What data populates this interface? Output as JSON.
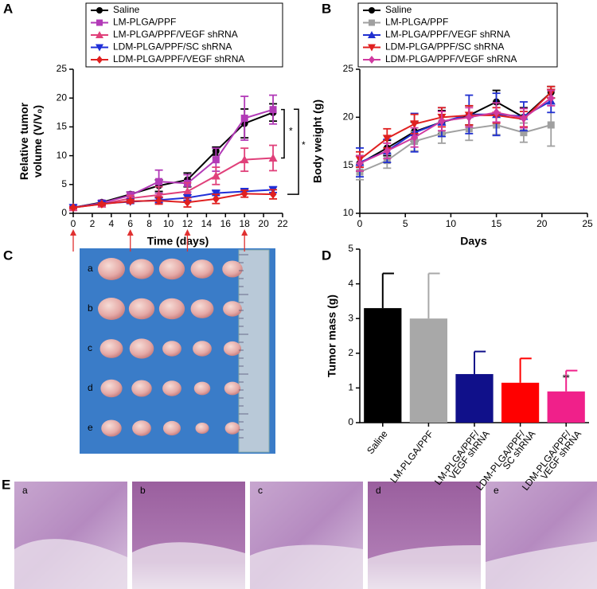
{
  "panels": [
    "A",
    "B",
    "C",
    "D",
    "E"
  ],
  "chart_data": [
    {
      "type": "line",
      "xlabel": "Time (days)",
      "ylabel": [
        "Relative tumor",
        "volume (V/V₀)"
      ],
      "x": [
        0,
        3,
        6,
        9,
        12,
        15,
        18,
        21
      ],
      "xlim": [
        0,
        22
      ],
      "xticks": [
        0,
        2,
        4,
        6,
        8,
        10,
        12,
        14,
        16,
        18,
        20,
        22
      ],
      "ylim": [
        0,
        25
      ],
      "yticks": [
        0,
        5,
        10,
        15,
        20,
        25
      ],
      "arrow_days": [
        0,
        6,
        12,
        18
      ],
      "arrow_color": "#e03030",
      "annotations": [
        "*",
        "*"
      ],
      "series": [
        {
          "name": "Saline",
          "color": "#000000",
          "marker": "circle",
          "values": [
            1,
            1.9,
            3.3,
            4.8,
            5.8,
            10.8,
            15.6,
            17.5
          ],
          "errors": [
            0.2,
            0.3,
            0.4,
            1.0,
            1.2,
            0.7,
            2.5,
            1.5
          ]
        },
        {
          "name": "LM-PLGA/PPF",
          "color": "#b23ab7",
          "marker": "square",
          "values": [
            1,
            1.8,
            3.1,
            5.5,
            5.2,
            9.3,
            16.5,
            18
          ],
          "errors": [
            0.2,
            0.3,
            0.6,
            2.0,
            1.5,
            2.0,
            3.8,
            2.5
          ]
        },
        {
          "name": "LM-PLGA/PPF/VEGF shRNA",
          "color": "#e0407a",
          "marker": "triangle",
          "values": [
            1,
            1.6,
            2.6,
            3.2,
            3.8,
            6.5,
            9.3,
            9.6
          ],
          "errors": [
            0.2,
            0.3,
            0.5,
            1.4,
            1.5,
            1.5,
            2.0,
            2.2
          ]
        },
        {
          "name": "LDM-PLGA/PPF/SC shRNA",
          "color": "#1f2fd8",
          "marker": "down",
          "values": [
            1,
            1.7,
            2.0,
            2.3,
            2.7,
            3.5,
            3.8,
            4.1
          ],
          "errors": [
            0.1,
            0.2,
            0.3,
            0.4,
            0.5,
            0.4,
            0.4,
            0.5
          ]
        },
        {
          "name": "LDM-PLGA/PPF/VEGF shRNA",
          "color": "#e02020",
          "marker": "diamond",
          "values": [
            1,
            1.6,
            2.1,
            2.2,
            1.9,
            2.5,
            3.4,
            3.3
          ],
          "errors": [
            0.1,
            0.2,
            0.3,
            0.6,
            0.8,
            0.8,
            0.6,
            0.8
          ]
        }
      ]
    },
    {
      "type": "line",
      "xlabel": "Days",
      "ylabel": [
        "Body weight (g)"
      ],
      "x": [
        0,
        3,
        6,
        9,
        12,
        15,
        18,
        21
      ],
      "xlim": [
        0,
        25
      ],
      "xticks": [
        0,
        5,
        10,
        15,
        20,
        25
      ],
      "ylim": [
        10,
        25
      ],
      "yticks": [
        10,
        15,
        20,
        25
      ],
      "series": [
        {
          "name": "Saline",
          "color": "#000000",
          "marker": "circle",
          "values": [
            15.2,
            16.8,
            18.5,
            19.5,
            20.2,
            21.6,
            20,
            22.6
          ],
          "errors": [
            0.8,
            0.8,
            1.0,
            1.2,
            1.0,
            1.2,
            1.0,
            0.6
          ]
        },
        {
          "name": "LM-PLGA/PPF",
          "color": "#a0a0a0",
          "marker": "square",
          "values": [
            14.3,
            15.5,
            17.5,
            18.3,
            18.8,
            19.2,
            18.4,
            19.2
          ],
          "errors": [
            0.8,
            0.8,
            1.0,
            1.0,
            1.2,
            1.0,
            1.0,
            2.2
          ]
        },
        {
          "name": "LM-PLGA/PPF/VEGF shRNA",
          "color": "#2030d0",
          "marker": "triangle",
          "values": [
            15.3,
            16.5,
            18.4,
            19.5,
            20.3,
            20.3,
            20.1,
            21.7
          ],
          "errors": [
            1.5,
            1.2,
            2.0,
            1.5,
            2.0,
            2.2,
            1.5,
            1.2
          ]
        },
        {
          "name": "LDM-PLGA/PPF/SC shRNA",
          "color": "#e02020",
          "marker": "down",
          "values": [
            15.6,
            17.8,
            19.3,
            20,
            20.2,
            20.2,
            19.8,
            22.6
          ],
          "errors": [
            0.8,
            1.0,
            1.0,
            1.0,
            1.0,
            0.8,
            0.8,
            0.6
          ]
        },
        {
          "name": "LDM-PLGA/PPF/VEGF shRNA",
          "color": "#d03aa0",
          "marker": "diamond",
          "values": [
            15.2,
            16.5,
            17.9,
            19.6,
            20,
            20.5,
            19.9,
            22
          ],
          "errors": [
            0.8,
            0.8,
            1.0,
            1.0,
            1.0,
            1.0,
            1.0,
            0.8
          ]
        }
      ]
    },
    {
      "type": "bar",
      "ylabel": [
        "Tumor mass (g)"
      ],
      "categories": [
        [
          "Saline"
        ],
        [
          "LM-PLGA/PPF"
        ],
        [
          "LM-PLGA/PPF/",
          "VEGF shRNA"
        ],
        [
          "LDM-PLGA/PPF/",
          "SC shRNA"
        ],
        [
          "LDM-PLGA/PPF/",
          "VEGF shRNA"
        ]
      ],
      "values": [
        3.3,
        3.0,
        1.4,
        1.15,
        0.9
      ],
      "errors": [
        1.0,
        1.3,
        0.65,
        0.7,
        0.6
      ],
      "colors": [
        "#000000",
        "#a8a8a8",
        "#10108a",
        "#ff0000",
        "#f0208a"
      ],
      "ylim": [
        0,
        5
      ],
      "yticks": [
        0,
        1,
        2,
        3,
        4,
        5
      ],
      "annotations": [
        "**"
      ]
    }
  ],
  "photo_c": {
    "labels": [
      "a",
      "b",
      "c",
      "d",
      "e"
    ]
  },
  "histology_e": {
    "labels": [
      "a",
      "b",
      "c",
      "d",
      "e"
    ]
  }
}
